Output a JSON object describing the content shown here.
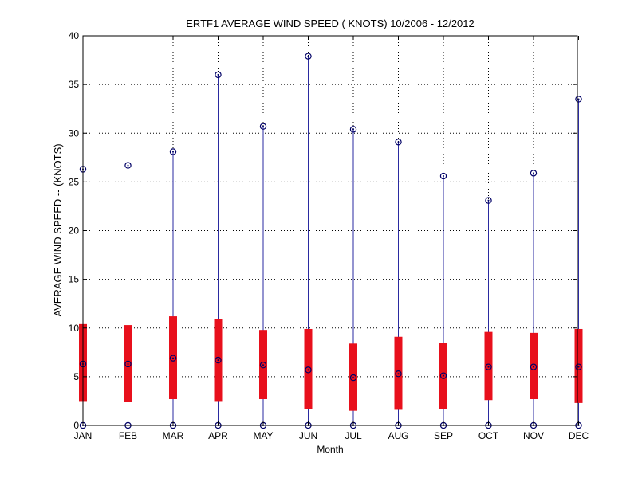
{
  "chart_data": {
    "type": "boxplot",
    "title": "ERTF1  AVERAGE WIND SPEED ( KNOTS) 10/2006 - 12/2012",
    "xlabel": "Month",
    "ylabel": "AVERAGE WIND SPEED -- (KNOTS)",
    "ylim": [
      0,
      40
    ],
    "yticks": [
      0,
      5,
      10,
      15,
      20,
      25,
      30,
      35,
      40
    ],
    "grid": true,
    "categories": [
      "JAN",
      "FEB",
      "MAR",
      "APR",
      "MAY",
      "JUN",
      "JUL",
      "AUG",
      "SEP",
      "OCT",
      "NOV",
      "DEC"
    ],
    "series": [
      {
        "stats": [
          {
            "min": 0,
            "q1": 2.5,
            "median": 6.3,
            "q3": 10.4,
            "max": 26.3
          },
          {
            "min": 0,
            "q1": 2.4,
            "median": 6.3,
            "q3": 10.3,
            "max": 26.7
          },
          {
            "min": 0,
            "q1": 2.7,
            "median": 6.9,
            "q3": 11.2,
            "max": 28.1
          },
          {
            "min": 0,
            "q1": 2.5,
            "median": 6.7,
            "q3": 10.9,
            "max": 36.0
          },
          {
            "min": 0,
            "q1": 2.7,
            "median": 6.2,
            "q3": 9.8,
            "max": 30.7
          },
          {
            "min": 0,
            "q1": 1.7,
            "median": 5.7,
            "q3": 9.9,
            "max": 37.9
          },
          {
            "min": 0,
            "q1": 1.5,
            "median": 4.9,
            "q3": 8.4,
            "max": 30.4
          },
          {
            "min": 0,
            "q1": 1.6,
            "median": 5.3,
            "q3": 9.1,
            "max": 29.1
          },
          {
            "min": 0,
            "q1": 1.7,
            "median": 5.1,
            "q3": 8.5,
            "max": 25.6
          },
          {
            "min": 0,
            "q1": 2.6,
            "median": 6.0,
            "q3": 9.6,
            "max": 23.1
          },
          {
            "min": 0,
            "q1": 2.7,
            "median": 6.0,
            "q3": 9.5,
            "max": 25.9
          },
          {
            "min": 0,
            "q1": 2.3,
            "median": 6.0,
            "q3": 9.9,
            "max": 33.5
          }
        ]
      }
    ]
  },
  "colors": {
    "whisker": "#2a2aa0",
    "box": "#e8101c",
    "marker": "#000066",
    "grid": "#000000",
    "axis": "#000000"
  }
}
